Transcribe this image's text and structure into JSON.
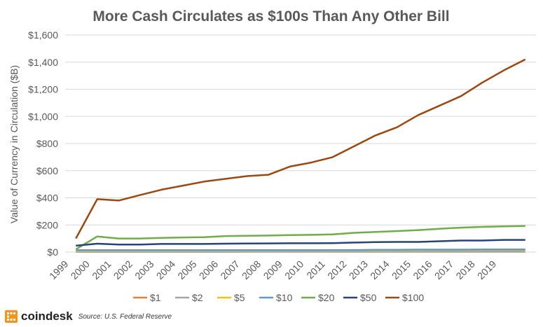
{
  "chart_data": {
    "type": "line",
    "title": "More Cash Circulates as $100s Than Any Other Bill",
    "ylabel": "Value of Currency in Circulation ($B)",
    "xlabel": "",
    "ylim": [
      0,
      1600
    ],
    "yticks": [
      0,
      200,
      400,
      600,
      800,
      1000,
      1200,
      1400,
      1600
    ],
    "ytick_labels": [
      "$0",
      "$200",
      "$400",
      "$600",
      "$800",
      "$1,000",
      "$1,200",
      "$1,400",
      "$1,600"
    ],
    "categories": [
      "1999",
      "2000",
      "2001",
      "2002",
      "2003",
      "2004",
      "2005",
      "2006",
      "2007",
      "2008",
      "2009",
      "2010",
      "2011",
      "2012",
      "2013",
      "2014",
      "2015",
      "2016",
      "2017",
      "2018",
      "2019",
      ""
    ],
    "grid": "horizontal",
    "legend_position": "bottom",
    "series": [
      {
        "name": "$1",
        "color": "#ED7D31",
        "values": [
          6,
          7,
          7,
          7,
          7,
          8,
          8,
          8,
          8,
          9,
          9,
          9,
          10,
          10,
          10,
          11,
          11,
          12,
          12,
          12,
          12,
          12
        ]
      },
      {
        "name": "$2",
        "color": "#A5A5A5",
        "values": [
          1,
          1,
          1,
          1,
          1,
          1,
          1,
          1,
          2,
          2,
          2,
          2,
          2,
          2,
          2,
          2,
          2,
          2,
          2,
          2,
          2,
          2
        ]
      },
      {
        "name": "$5",
        "color": "#FFC000",
        "values": [
          8,
          8,
          9,
          9,
          9,
          9,
          10,
          10,
          10,
          10,
          11,
          11,
          11,
          12,
          12,
          13,
          13,
          14,
          14,
          15,
          15,
          15
        ]
      },
      {
        "name": "$10",
        "color": "#5B9BD5",
        "values": [
          14,
          14,
          14,
          14,
          14,
          14,
          14,
          14,
          14,
          14,
          14,
          14,
          15,
          15,
          17,
          17,
          18,
          18,
          18,
          19,
          19,
          19
        ]
      },
      {
        "name": "$20",
        "color": "#70AD47",
        "values": [
          20,
          115,
          100,
          100,
          105,
          108,
          110,
          118,
          120,
          122,
          125,
          127,
          130,
          142,
          148,
          155,
          162,
          172,
          180,
          186,
          190,
          192
        ]
      },
      {
        "name": "$50",
        "color": "#264478",
        "values": [
          47,
          62,
          55,
          55,
          60,
          60,
          60,
          62,
          63,
          64,
          65,
          65,
          66,
          70,
          74,
          75,
          75,
          80,
          85,
          85,
          90,
          90
        ]
      },
      {
        "name": "$100",
        "color": "#9E480E",
        "values": [
          100,
          390,
          380,
          420,
          460,
          490,
          520,
          540,
          560,
          570,
          630,
          660,
          700,
          780,
          860,
          920,
          1010,
          1080,
          1150,
          1250,
          1340,
          1420
        ]
      }
    ]
  },
  "footer": {
    "brand": "coindesk",
    "source": "Source: U.S. Federal Reserve",
    "brand_color": "#F7931A"
  }
}
